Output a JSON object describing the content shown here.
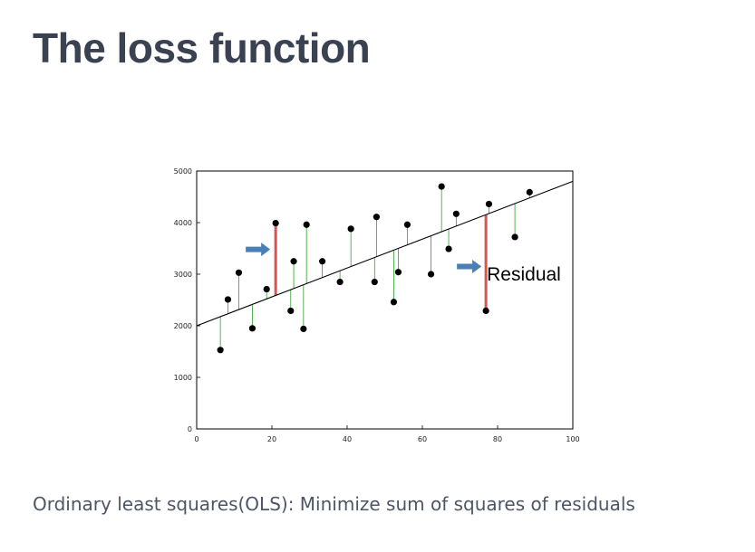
{
  "slide": {
    "title": "The loss function",
    "caption": "Ordinary least squares(OLS): Minimize sum of squares of residuals"
  },
  "chart_data": {
    "type": "scatter",
    "xlim": [
      0,
      100
    ],
    "ylim": [
      0,
      5000
    ],
    "xticks": [
      0,
      20,
      40,
      60,
      80,
      100
    ],
    "yticks": [
      0,
      1000,
      2000,
      3000,
      4000,
      5000
    ],
    "grid": false,
    "fit_line": {
      "intercept": 2000,
      "slope": 28
    },
    "points": [
      {
        "x": 6.3,
        "y": 1530
      },
      {
        "x": 8.3,
        "y": 2510
      },
      {
        "x": 11.2,
        "y": 3030
      },
      {
        "x": 14.8,
        "y": 1950
      },
      {
        "x": 18.6,
        "y": 2710
      },
      {
        "x": 21.0,
        "y": 3990
      },
      {
        "x": 25.0,
        "y": 2290
      },
      {
        "x": 25.8,
        "y": 3250
      },
      {
        "x": 28.4,
        "y": 1940
      },
      {
        "x": 29.2,
        "y": 3960
      },
      {
        "x": 33.4,
        "y": 3250
      },
      {
        "x": 38.1,
        "y": 2850
      },
      {
        "x": 41.0,
        "y": 3880
      },
      {
        "x": 47.3,
        "y": 2850
      },
      {
        "x": 47.8,
        "y": 4110
      },
      {
        "x": 52.4,
        "y": 2460
      },
      {
        "x": 53.6,
        "y": 3040
      },
      {
        "x": 56.0,
        "y": 3960
      },
      {
        "x": 62.3,
        "y": 3000
      },
      {
        "x": 65.1,
        "y": 4700
      },
      {
        "x": 67.0,
        "y": 3490
      },
      {
        "x": 69.0,
        "y": 4170
      },
      {
        "x": 76.9,
        "y": 2290
      },
      {
        "x": 77.7,
        "y": 4360
      },
      {
        "x": 84.6,
        "y": 3720
      },
      {
        "x": 88.5,
        "y": 4590
      }
    ],
    "highlighted_residual_points": [
      5,
      22
    ],
    "annotations": [
      {
        "text": "Residual"
      }
    ],
    "colors": {
      "points": "#000000",
      "fit_line": "#000000",
      "residual": "#2ca02c",
      "highlight_residual": "#d9534f",
      "arrow": "#4a7fb5"
    }
  }
}
